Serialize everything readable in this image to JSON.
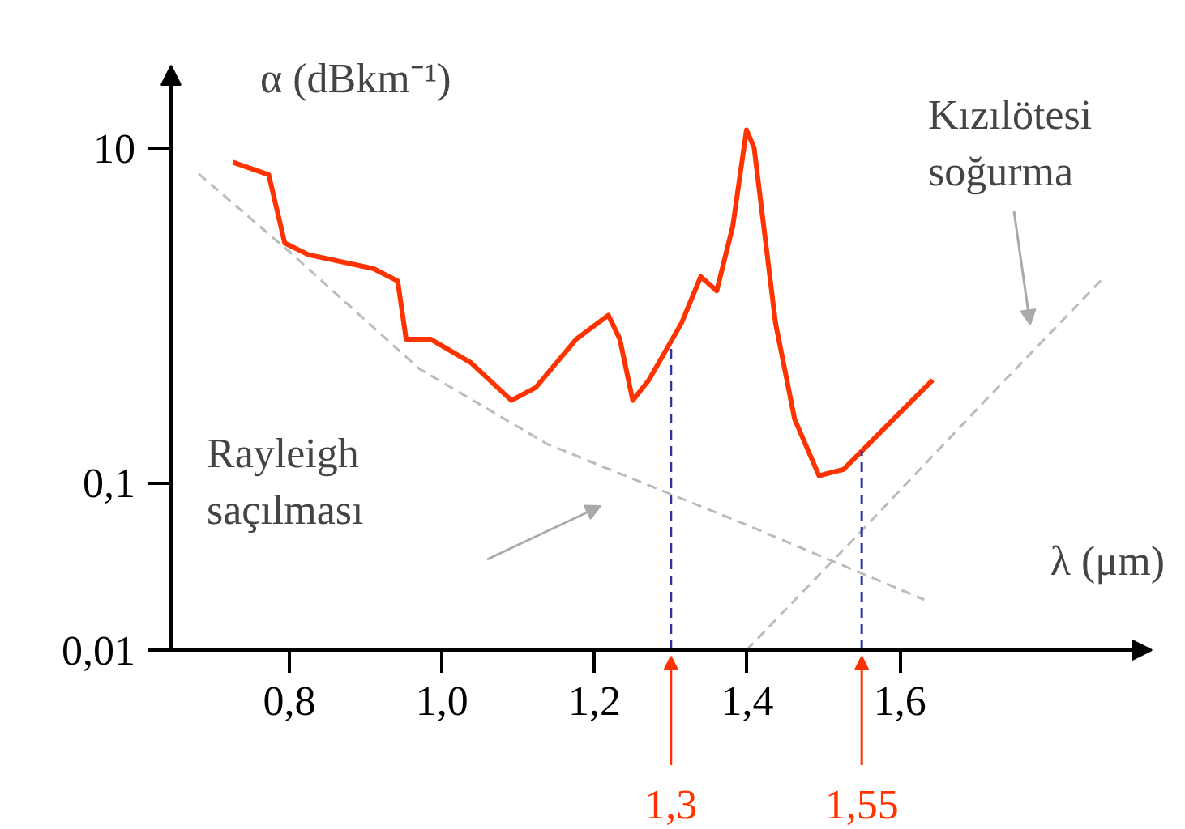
{
  "chart_data": {
    "type": "line",
    "xlabel": "λ (μm)",
    "ylabel": "α (dBkm⁻¹)",
    "log": "y",
    "grid": false,
    "marker": "none",
    "xlim": [
      0.645,
      1.93
    ],
    "ylim": [
      0.01,
      31
    ],
    "xticks": [
      {
        "value": 0.8,
        "label": "0,8"
      },
      {
        "value": 1.0,
        "label": "1,0"
      },
      {
        "value": 1.2,
        "label": "1,2"
      },
      {
        "value": 1.4,
        "label": "1,4"
      },
      {
        "value": 1.6,
        "label": "1,6"
      }
    ],
    "yticks": [
      {
        "value": 0.01,
        "label": "0,01"
      },
      {
        "value": 0.1,
        "label": "0,1"
      },
      {
        "value": 10,
        "label": "10"
      }
    ],
    "series": [
      {
        "color": "#ff3300",
        "line_style": "solid",
        "x": [
          0.726,
          0.773,
          0.794,
          0.825,
          0.91,
          0.942,
          0.953,
          0.985,
          1.038,
          1.091,
          1.123,
          1.176,
          1.218,
          1.233,
          1.25,
          1.271,
          1.314,
          1.339,
          1.36,
          1.381,
          1.399,
          1.409,
          1.437,
          1.462,
          1.494,
          1.526,
          1.579,
          1.643
        ],
        "values": [
          8.2,
          6.9,
          2.7,
          2.3,
          1.9,
          1.6,
          0.72,
          0.72,
          0.52,
          0.31,
          0.37,
          0.72,
          1.0,
          0.72,
          0.31,
          0.41,
          0.9,
          1.7,
          1.4,
          3.4,
          12.8,
          10,
          0.9,
          0.24,
          0.11,
          0.12,
          0.21,
          0.41
        ]
      },
      {
        "color": "#bbbbbb",
        "line_style": "dashed",
        "x": [
          0.681,
          0.8,
          0.97,
          1.138,
          1.399,
          1.632
        ],
        "values": [
          7.0,
          2.4,
          0.48,
          0.17,
          0.056,
          0.02
        ]
      },
      {
        "color": "#bbbbbb",
        "line_style": "dashed",
        "x": [
          1.399,
          1.547,
          1.696,
          1.866
        ],
        "values": [
          0.01,
          0.05,
          0.26,
          1.66
        ]
      }
    ],
    "ref_lines": [
      {
        "axis": "x",
        "value": 1.3,
        "label": "1,3",
        "color": "#333399",
        "line_style": "dashed"
      },
      {
        "axis": "x",
        "value": 1.55,
        "label": "1,55",
        "color": "#333399",
        "line_style": "dashed"
      }
    ],
    "annotations": [
      "Rayleigh\nsaçılması",
      "Kızılötesi\nsoğurma"
    ]
  }
}
